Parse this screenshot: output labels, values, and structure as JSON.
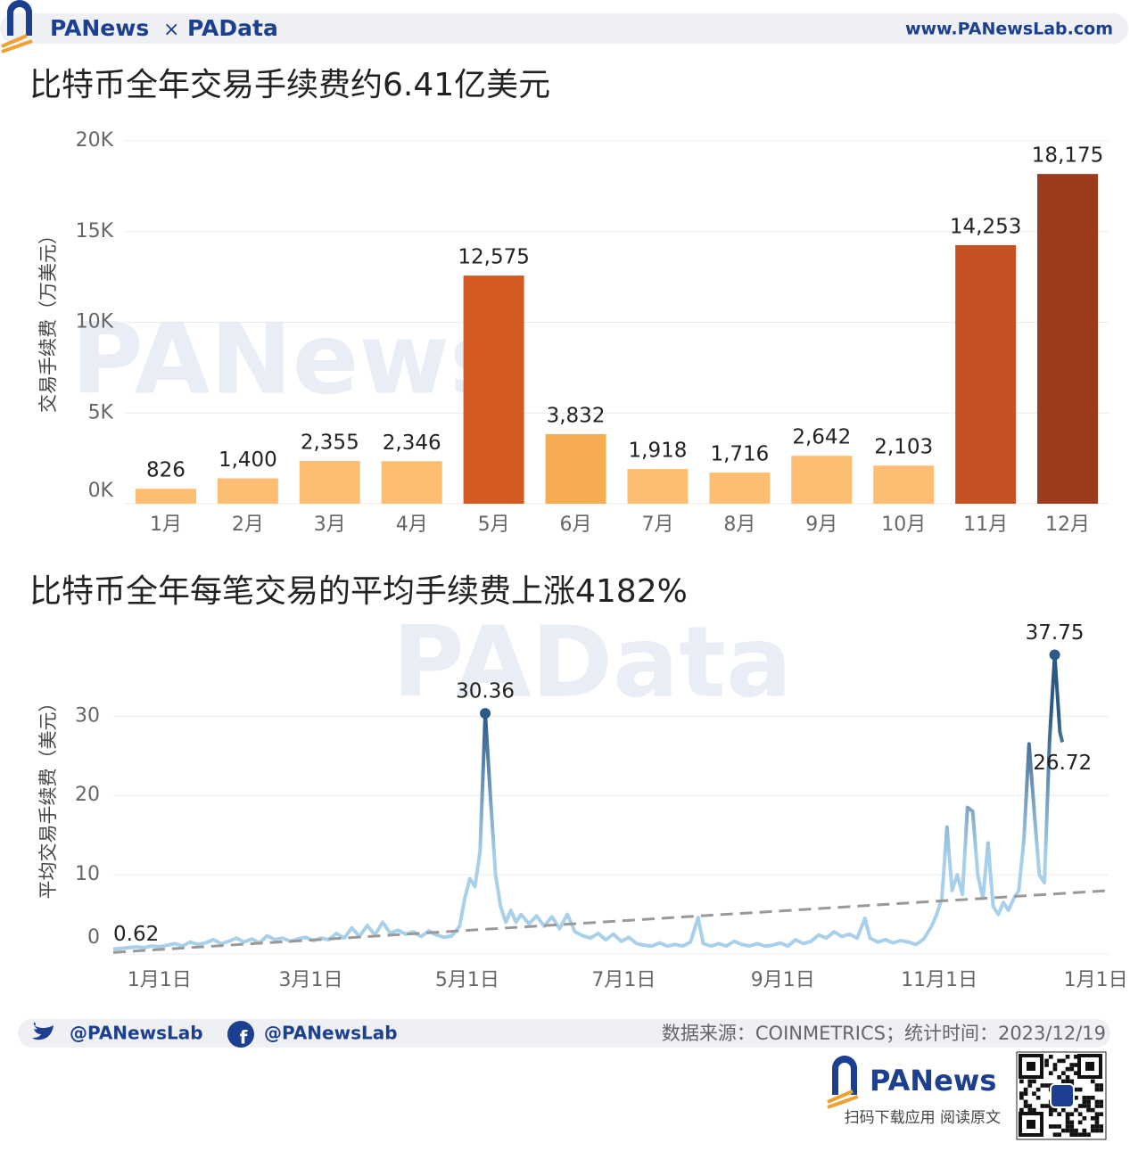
{
  "header": {
    "brand_left": "PANews",
    "times": "×",
    "brand_right": "PAData",
    "url": "www.PANewsLab.com"
  },
  "watermarks": [
    "PANews",
    "PAData"
  ],
  "chart_data": [
    {
      "type": "bar",
      "title": "比特币全年交易手续费约6.41亿美元",
      "y_label": "交易手续费（万美元）",
      "categories": [
        "1月",
        "2月",
        "3月",
        "4月",
        "5月",
        "6月",
        "7月",
        "8月",
        "9月",
        "10月",
        "11月",
        "12月"
      ],
      "values": [
        826,
        1400,
        2355,
        2346,
        12575,
        3832,
        1918,
        1716,
        2642,
        2103,
        14253,
        18175
      ],
      "value_labels": [
        "826",
        "1,400",
        "2,355",
        "2,346",
        "12,575",
        "3,832",
        "1,918",
        "1,716",
        "2,642",
        "2,103",
        "14,253",
        "18,175"
      ],
      "colors": [
        "#fdbe74",
        "#fdbe74",
        "#fdbe74",
        "#fdbe74",
        "#d35b23",
        "#f6ad52",
        "#fdbe74",
        "#fdbe74",
        "#fdbe74",
        "#fdbe74",
        "#c65223",
        "#9c3a1e"
      ],
      "ylim": [
        0,
        20000
      ],
      "yticks": [
        {
          "value": 0,
          "label": "0K"
        },
        {
          "value": 5000,
          "label": "5K"
        },
        {
          "value": 10000,
          "label": "10K"
        },
        {
          "value": 15000,
          "label": "15K"
        },
        {
          "value": 20000,
          "label": "20K"
        }
      ],
      "grid": true
    },
    {
      "type": "line",
      "title": "比特币全年每笔交易的平均手续费上涨4182%",
      "y_label": "平均交易手续费（美元）",
      "x": [
        -18,
        -15,
        -12,
        -9,
        -6,
        -3,
        0,
        3,
        6,
        9,
        12,
        15,
        18,
        21,
        24,
        27,
        30,
        33,
        36,
        39,
        42,
        45,
        48,
        51,
        54,
        57,
        60,
        63,
        66,
        69,
        72,
        75,
        78,
        81,
        84,
        87,
        90,
        93,
        96,
        99,
        102,
        105,
        108,
        111,
        114,
        117,
        119,
        121,
        123,
        125,
        127,
        129,
        131,
        133,
        135,
        137,
        139,
        141,
        144,
        147,
        150,
        153,
        156,
        159,
        162,
        165,
        168,
        171,
        174,
        177,
        180,
        183,
        186,
        189,
        192,
        195,
        198,
        201,
        204,
        207,
        210,
        212,
        215,
        218,
        221,
        224,
        227,
        230,
        233,
        236,
        239,
        242,
        245,
        248,
        251,
        254,
        257,
        260,
        263,
        266,
        269,
        272,
        275,
        277,
        280,
        283,
        286,
        289,
        292,
        295,
        298,
        301,
        303,
        305,
        307,
        309,
        311,
        313,
        315,
        317,
        319,
        321,
        323,
        325,
        327,
        329,
        331,
        333,
        335,
        337,
        339,
        341,
        343,
        345,
        347,
        349,
        351,
        352
      ],
      "values": [
        0.62,
        0.7,
        0.8,
        0.9,
        0.8,
        1.0,
        0.9,
        1.1,
        1.3,
        1.0,
        1.5,
        1.2,
        1.4,
        1.8,
        1.3,
        1.6,
        2.0,
        1.5,
        1.9,
        1.4,
        2.3,
        1.8,
        2.0,
        1.6,
        1.9,
        2.1,
        1.7,
        2.0,
        1.8,
        2.6,
        2.0,
        3.3,
        2.2,
        3.6,
        2.4,
        4.0,
        2.6,
        3.0,
        2.5,
        2.8,
        2.2,
        2.9,
        2.4,
        2.1,
        2.3,
        3.5,
        7.0,
        9.5,
        8.5,
        13.0,
        30.36,
        20.0,
        10.0,
        6.0,
        4.0,
        5.5,
        4.0,
        5.0,
        3.8,
        4.8,
        3.5,
        4.7,
        3.2,
        5.0,
        2.8,
        2.3,
        2.0,
        2.6,
        1.8,
        2.5,
        1.6,
        2.1,
        1.3,
        1.1,
        1.0,
        1.4,
        1.0,
        1.2,
        1.0,
        1.5,
        4.6,
        1.3,
        1.0,
        1.3,
        1.0,
        1.6,
        1.2,
        1.0,
        1.3,
        1.0,
        1.1,
        1.4,
        1.0,
        1.8,
        1.3,
        1.6,
        2.4,
        2.0,
        2.8,
        2.2,
        2.5,
        2.0,
        4.5,
        2.0,
        1.5,
        1.8,
        1.4,
        1.7,
        1.5,
        1.2,
        1.9,
        3.5,
        5.0,
        7.0,
        16.0,
        8.0,
        10.0,
        7.5,
        18.5,
        18.0,
        10.0,
        7.0,
        14.0,
        6.0,
        5.0,
        6.5,
        5.5,
        7.0,
        8.0,
        14.5,
        26.5,
        18.0,
        10.0,
        9.0,
        27.0,
        37.75,
        28.0,
        26.72
      ],
      "color": "#a9d0ea",
      "peak_color": "#2b5a86",
      "trend": {
        "x": [
          -18,
          370
        ],
        "values": [
          0.2,
          8.0
        ],
        "color": "#999999"
      },
      "xlim": [
        -18,
        370
      ],
      "xticks": [
        {
          "value": 0,
          "label": "1月1日"
        },
        {
          "value": 59,
          "label": "3月1日"
        },
        {
          "value": 120,
          "label": "5月1日"
        },
        {
          "value": 181,
          "label": "7月1日"
        },
        {
          "value": 243,
          "label": "9月1日"
        },
        {
          "value": 304,
          "label": "11月1日"
        },
        {
          "value": 365,
          "label": "1月1日"
        }
      ],
      "ylim": [
        0,
        40.5
      ],
      "yticks": [
        0,
        10,
        20,
        30
      ],
      "grid": true
    }
  ],
  "footer": {
    "twitter": "@PANewsLab",
    "facebook": "@PANewsLab",
    "source": "数据来源：COINMETRICS；统计时间：2023/12/19",
    "app_brand": "PANews",
    "app_cta": "扫码下载应用 阅读原文"
  }
}
